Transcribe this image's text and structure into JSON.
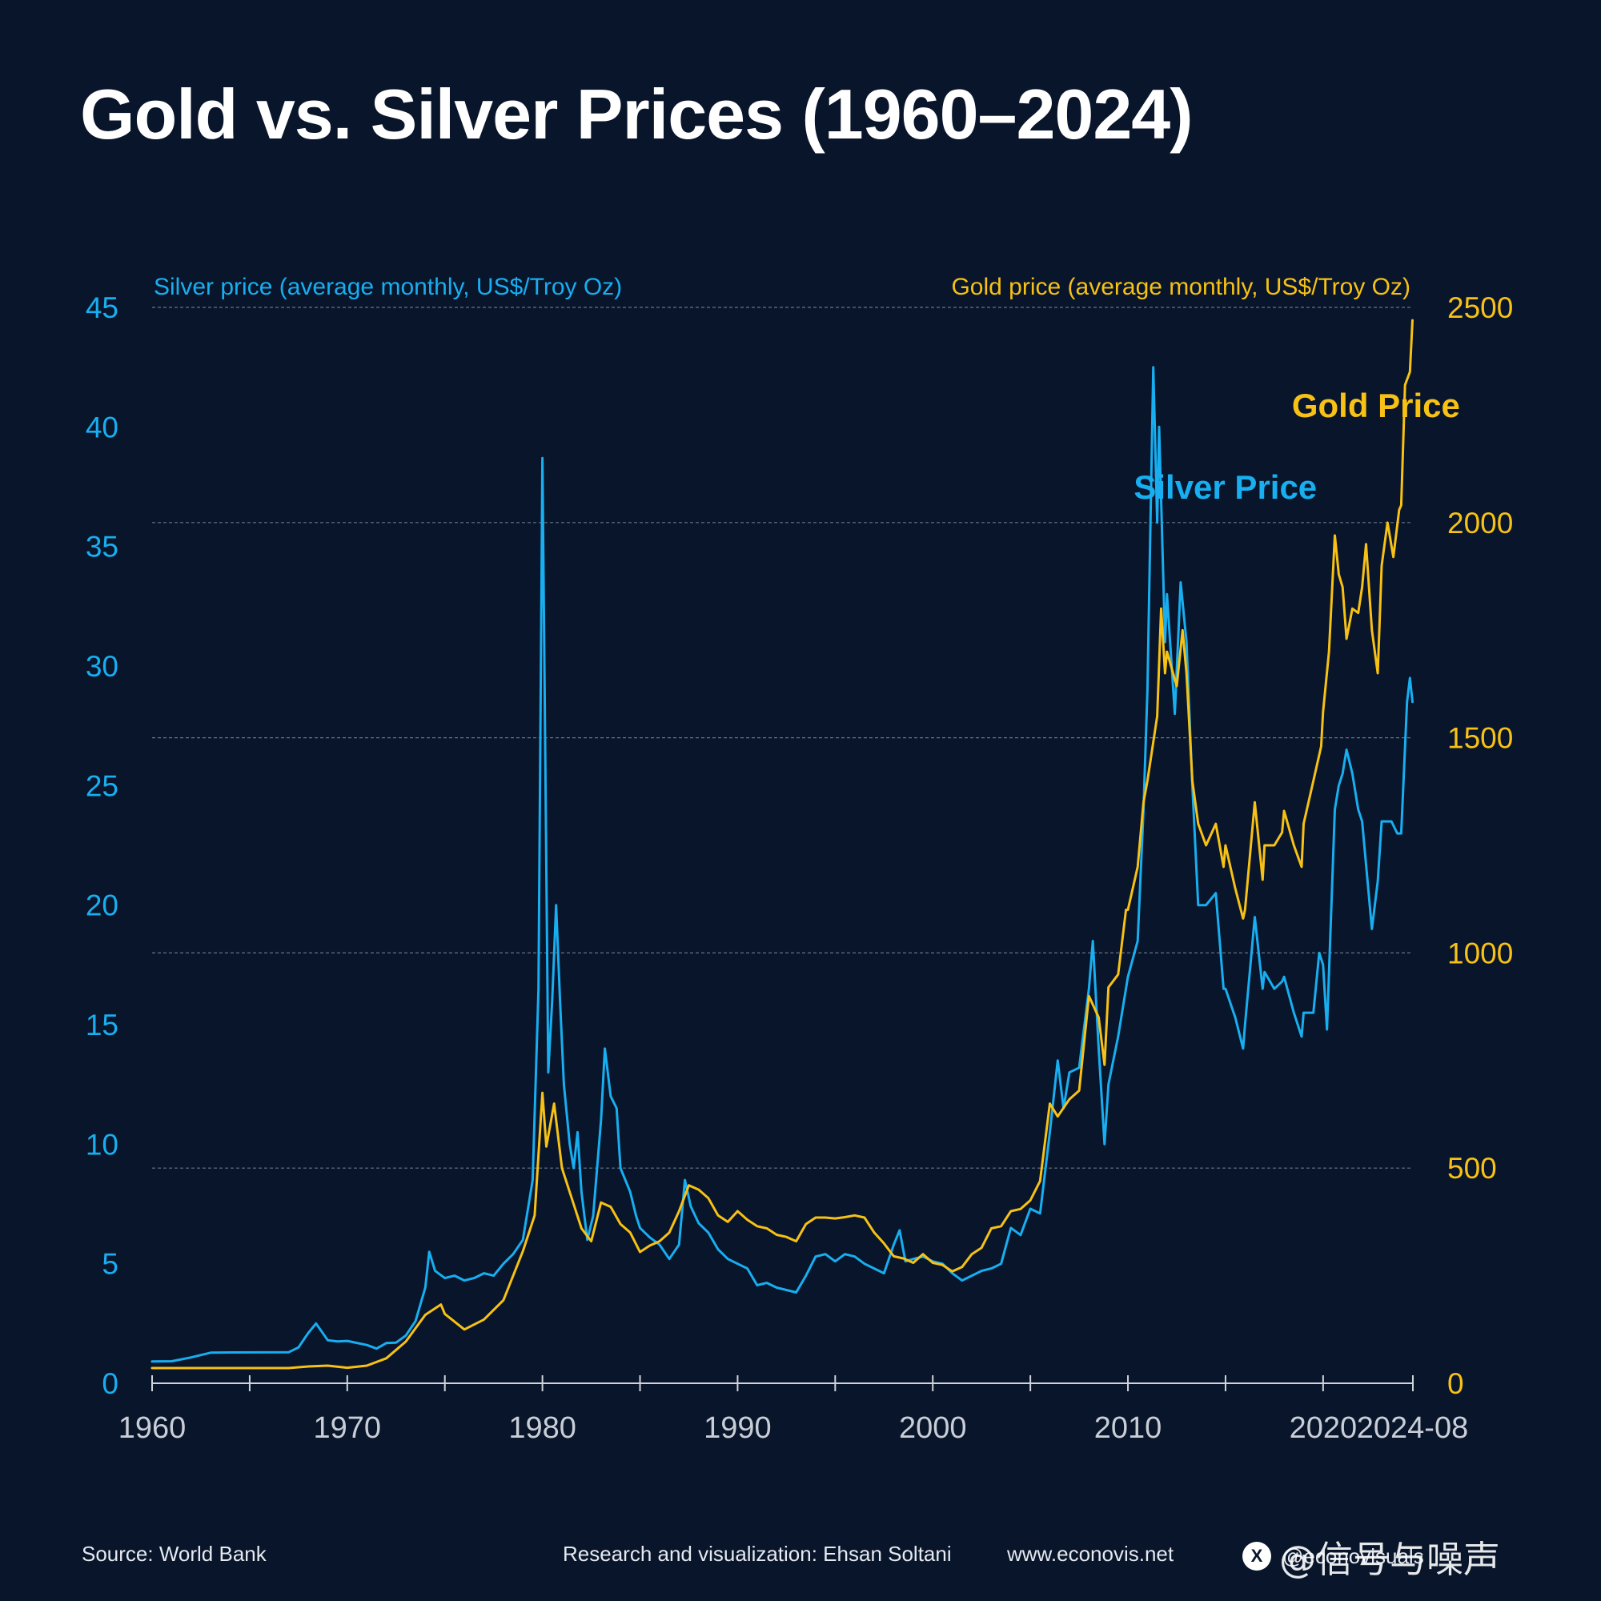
{
  "title": "Gold vs. Silver Prices (1960–2024)",
  "footer": {
    "source": "Source: World Bank",
    "credit": "Research and visualization: Ehsan Soltani",
    "website": "www.econovis.net",
    "social_handle": "@econovisuals",
    "x_icon": "X",
    "watermark": "@信号与噪声"
  },
  "colors": {
    "background": "#08152b",
    "silver": "#18aef0",
    "gold": "#f7c115",
    "grid": "#8a93a3",
    "axis": "#d0d4db"
  },
  "chart_data": {
    "type": "line",
    "x_ticks": [
      "1960",
      "1970",
      "1980",
      "1990",
      "2000",
      "2010",
      "2020",
      "2024-08"
    ],
    "x_tick_values": [
      1960,
      1970,
      1980,
      1990,
      2000,
      2010,
      2020,
      2024.58
    ],
    "xlim": [
      1960,
      2024.6
    ],
    "left_axis": {
      "label": "Silver price (average monthly, US$/Troy Oz)",
      "ylim": [
        0,
        45
      ],
      "ticks": [
        "0",
        "5",
        "10",
        "15",
        "20",
        "25",
        "30",
        "35",
        "40",
        "45"
      ]
    },
    "right_axis": {
      "label": "Gold price (average monthly, US$/Troy Oz)",
      "ylim": [
        0,
        2500
      ],
      "ticks": [
        "0",
        "500",
        "1000",
        "1500",
        "2000",
        "2500"
      ]
    },
    "series": [
      {
        "name": "Silver Price",
        "axis": "left",
        "points": [
          [
            1960,
            0.91
          ],
          [
            1961,
            0.92
          ],
          [
            1962,
            1.08
          ],
          [
            1963,
            1.28
          ],
          [
            1964,
            1.29
          ],
          [
            1967,
            1.3
          ],
          [
            1967.5,
            1.5
          ],
          [
            1968,
            2.1
          ],
          [
            1968.4,
            2.5
          ],
          [
            1969,
            1.8
          ],
          [
            1969.5,
            1.75
          ],
          [
            1970,
            1.77
          ],
          [
            1971,
            1.6
          ],
          [
            1971.5,
            1.45
          ],
          [
            1972,
            1.68
          ],
          [
            1972.5,
            1.7
          ],
          [
            1973,
            2.0
          ],
          [
            1973.5,
            2.6
          ],
          [
            1974,
            4.0
          ],
          [
            1974.2,
            5.5
          ],
          [
            1974.5,
            4.7
          ],
          [
            1975,
            4.4
          ],
          [
            1975.5,
            4.5
          ],
          [
            1976,
            4.3
          ],
          [
            1976.5,
            4.4
          ],
          [
            1977,
            4.6
          ],
          [
            1977.5,
            4.5
          ],
          [
            1978,
            5.0
          ],
          [
            1978.5,
            5.4
          ],
          [
            1979,
            6.0
          ],
          [
            1979.5,
            8.5
          ],
          [
            1979.8,
            16.5
          ],
          [
            1980.0,
            38.7
          ],
          [
            1980.1,
            30
          ],
          [
            1980.3,
            13.0
          ],
          [
            1980.5,
            16.0
          ],
          [
            1980.7,
            20.0
          ],
          [
            1980.9,
            16.0
          ],
          [
            1981.1,
            12.5
          ],
          [
            1981.4,
            10.0
          ],
          [
            1981.6,
            9.0
          ],
          [
            1981.8,
            10.5
          ],
          [
            1982,
            8.0
          ],
          [
            1982.3,
            6.0
          ],
          [
            1982.6,
            7.0
          ],
          [
            1982.8,
            9.0
          ],
          [
            1983,
            11.0
          ],
          [
            1983.2,
            14.0
          ],
          [
            1983.5,
            12.0
          ],
          [
            1983.8,
            11.5
          ],
          [
            1984,
            9.0
          ],
          [
            1984.5,
            8.0
          ],
          [
            1984.8,
            7.0
          ],
          [
            1985,
            6.5
          ],
          [
            1985.5,
            6.1
          ],
          [
            1986,
            5.8
          ],
          [
            1986.5,
            5.2
          ],
          [
            1987,
            5.8
          ],
          [
            1987.3,
            8.5
          ],
          [
            1987.6,
            7.4
          ],
          [
            1988,
            6.7
          ],
          [
            1988.5,
            6.3
          ],
          [
            1989,
            5.6
          ],
          [
            1989.5,
            5.2
          ],
          [
            1990,
            5.0
          ],
          [
            1990.5,
            4.8
          ],
          [
            1991,
            4.1
          ],
          [
            1991.5,
            4.2
          ],
          [
            1992,
            4.0
          ],
          [
            1992.5,
            3.9
          ],
          [
            1993,
            3.8
          ],
          [
            1993.5,
            4.5
          ],
          [
            1994,
            5.3
          ],
          [
            1994.5,
            5.4
          ],
          [
            1995,
            5.1
          ],
          [
            1995.5,
            5.4
          ],
          [
            1996,
            5.3
          ],
          [
            1996.5,
            5.0
          ],
          [
            1997,
            4.8
          ],
          [
            1997.5,
            4.6
          ],
          [
            1998,
            5.8
          ],
          [
            1998.3,
            6.4
          ],
          [
            1998.6,
            5.1
          ],
          [
            1999,
            5.2
          ],
          [
            1999.5,
            5.3
          ],
          [
            2000,
            5.1
          ],
          [
            2000.5,
            5.0
          ],
          [
            2001,
            4.6
          ],
          [
            2001.5,
            4.3
          ],
          [
            2002,
            4.5
          ],
          [
            2002.5,
            4.7
          ],
          [
            2003,
            4.8
          ],
          [
            2003.5,
            5.0
          ],
          [
            2004,
            6.5
          ],
          [
            2004.5,
            6.2
          ],
          [
            2005,
            7.3
          ],
          [
            2005.5,
            7.1
          ],
          [
            2006,
            10.5
          ],
          [
            2006.4,
            13.5
          ],
          [
            2006.7,
            11.5
          ],
          [
            2007,
            13.0
          ],
          [
            2007.5,
            13.2
          ],
          [
            2008,
            16.5
          ],
          [
            2008.2,
            18.5
          ],
          [
            2008.5,
            14.0
          ],
          [
            2008.8,
            10.0
          ],
          [
            2009,
            12.5
          ],
          [
            2009.5,
            14.5
          ],
          [
            2010,
            17.0
          ],
          [
            2010.5,
            18.5
          ],
          [
            2010.8,
            24.0
          ],
          [
            2011,
            29.0
          ],
          [
            2011.3,
            42.5
          ],
          [
            2011.5,
            36.0
          ],
          [
            2011.6,
            40.0
          ],
          [
            2011.9,
            31.0
          ],
          [
            2012,
            33.0
          ],
          [
            2012.4,
            28.0
          ],
          [
            2012.7,
            33.5
          ],
          [
            2013,
            31.0
          ],
          [
            2013.3,
            25.0
          ],
          [
            2013.6,
            20.0
          ],
          [
            2014,
            20.0
          ],
          [
            2014.5,
            20.5
          ],
          [
            2014.9,
            16.5
          ],
          [
            2015,
            16.5
          ],
          [
            2015.5,
            15.3
          ],
          [
            2015.9,
            14.0
          ],
          [
            2016,
            15.0
          ],
          [
            2016.5,
            19.5
          ],
          [
            2016.9,
            16.5
          ],
          [
            2017,
            17.2
          ],
          [
            2017.5,
            16.5
          ],
          [
            2017.9,
            16.8
          ],
          [
            2018,
            17.0
          ],
          [
            2018.5,
            15.5
          ],
          [
            2018.9,
            14.5
          ],
          [
            2019,
            15.5
          ],
          [
            2019.5,
            15.5
          ],
          [
            2019.8,
            18.0
          ],
          [
            2020,
            17.5
          ],
          [
            2020.2,
            14.8
          ],
          [
            2020.6,
            24.0
          ],
          [
            2020.8,
            25.0
          ],
          [
            2021,
            25.5
          ],
          [
            2021.2,
            26.5
          ],
          [
            2021.5,
            25.5
          ],
          [
            2021.8,
            24.0
          ],
          [
            2022,
            23.5
          ],
          [
            2022.5,
            19.0
          ],
          [
            2022.8,
            21.0
          ],
          [
            2023,
            23.5
          ],
          [
            2023.5,
            23.5
          ],
          [
            2023.8,
            23.0
          ],
          [
            2024,
            23.0
          ],
          [
            2024.3,
            28.5
          ],
          [
            2024.45,
            29.5
          ],
          [
            2024.58,
            28.5
          ]
        ]
      },
      {
        "name": "Gold Price",
        "axis": "right",
        "points": [
          [
            1960,
            35.3
          ],
          [
            1967,
            35.3
          ],
          [
            1968,
            39
          ],
          [
            1969,
            41
          ],
          [
            1970,
            36
          ],
          [
            1971,
            41
          ],
          [
            1972,
            58
          ],
          [
            1973,
            97
          ],
          [
            1974,
            159
          ],
          [
            1974.8,
            183
          ],
          [
            1975,
            161
          ],
          [
            1976,
            125
          ],
          [
            1977,
            148
          ],
          [
            1978,
            193
          ],
          [
            1979,
            307
          ],
          [
            1979.6,
            390
          ],
          [
            1980.0,
            675
          ],
          [
            1980.2,
            550
          ],
          [
            1980.6,
            650
          ],
          [
            1981,
            500
          ],
          [
            1981.5,
            430
          ],
          [
            1982,
            360
          ],
          [
            1982.5,
            330
          ],
          [
            1983,
            420
          ],
          [
            1983.5,
            410
          ],
          [
            1984,
            370
          ],
          [
            1984.5,
            350
          ],
          [
            1985,
            305
          ],
          [
            1985.5,
            320
          ],
          [
            1986,
            330
          ],
          [
            1986.5,
            350
          ],
          [
            1987,
            400
          ],
          [
            1987.5,
            460
          ],
          [
            1988,
            450
          ],
          [
            1988.5,
            430
          ],
          [
            1989,
            390
          ],
          [
            1989.5,
            375
          ],
          [
            1990,
            400
          ],
          [
            1990.5,
            380
          ],
          [
            1991,
            365
          ],
          [
            1991.5,
            360
          ],
          [
            1992,
            345
          ],
          [
            1992.5,
            340
          ],
          [
            1993,
            330
          ],
          [
            1993.5,
            370
          ],
          [
            1994,
            385
          ],
          [
            1994.5,
            385
          ],
          [
            1995,
            383
          ],
          [
            1995.5,
            386
          ],
          [
            1996,
            390
          ],
          [
            1996.5,
            385
          ],
          [
            1997,
            350
          ],
          [
            1997.5,
            325
          ],
          [
            1998,
            295
          ],
          [
            1998.5,
            290
          ],
          [
            1999,
            280
          ],
          [
            1999.5,
            300
          ],
          [
            2000,
            280
          ],
          [
            2000.5,
            275
          ],
          [
            2001,
            260
          ],
          [
            2001.5,
            270
          ],
          [
            2002,
            300
          ],
          [
            2002.5,
            315
          ],
          [
            2003,
            360
          ],
          [
            2003.5,
            365
          ],
          [
            2004,
            400
          ],
          [
            2004.5,
            405
          ],
          [
            2005,
            425
          ],
          [
            2005.5,
            470
          ],
          [
            2006,
            650
          ],
          [
            2006.4,
            620
          ],
          [
            2007,
            660
          ],
          [
            2007.5,
            680
          ],
          [
            2008,
            900
          ],
          [
            2008.5,
            850
          ],
          [
            2008.8,
            740
          ],
          [
            2009,
            920
          ],
          [
            2009.5,
            950
          ],
          [
            2009.9,
            1100
          ],
          [
            2010,
            1100
          ],
          [
            2010.5,
            1200
          ],
          [
            2010.8,
            1350
          ],
          [
            2011,
            1400
          ],
          [
            2011.5,
            1550
          ],
          [
            2011.7,
            1800
          ],
          [
            2011.9,
            1650
          ],
          [
            2012,
            1700
          ],
          [
            2012.5,
            1620
          ],
          [
            2012.8,
            1750
          ],
          [
            2013,
            1650
          ],
          [
            2013.3,
            1400
          ],
          [
            2013.6,
            1300
          ],
          [
            2014,
            1250
          ],
          [
            2014.5,
            1300
          ],
          [
            2014.9,
            1200
          ],
          [
            2015,
            1250
          ],
          [
            2015.5,
            1150
          ],
          [
            2015.9,
            1080
          ],
          [
            2016,
            1100
          ],
          [
            2016.5,
            1350
          ],
          [
            2016.9,
            1170
          ],
          [
            2017,
            1250
          ],
          [
            2017.5,
            1250
          ],
          [
            2017.9,
            1280
          ],
          [
            2018,
            1330
          ],
          [
            2018.5,
            1250
          ],
          [
            2018.9,
            1200
          ],
          [
            2019,
            1300
          ],
          [
            2019.5,
            1400
          ],
          [
            2019.9,
            1480
          ],
          [
            2020,
            1560
          ],
          [
            2020.3,
            1700
          ],
          [
            2020.6,
            1970
          ],
          [
            2020.8,
            1880
          ],
          [
            2021,
            1850
          ],
          [
            2021.2,
            1730
          ],
          [
            2021.5,
            1800
          ],
          [
            2021.8,
            1790
          ],
          [
            2022,
            1850
          ],
          [
            2022.2,
            1950
          ],
          [
            2022.5,
            1750
          ],
          [
            2022.8,
            1650
          ],
          [
            2023,
            1900
          ],
          [
            2023.3,
            2000
          ],
          [
            2023.6,
            1920
          ],
          [
            2023.9,
            2030
          ],
          [
            2024,
            2040
          ],
          [
            2024.2,
            2320
          ],
          [
            2024.45,
            2350
          ],
          [
            2024.58,
            2470
          ]
        ]
      }
    ],
    "annotations": [
      {
        "text": "Silver Price",
        "x": 2010.3,
        "y_left": 37,
        "color_key": "silver"
      },
      {
        "text": "Gold Price",
        "x": 2018.4,
        "y_right": 2245,
        "color_key": "gold"
      }
    ],
    "grid": "horizontal dashed"
  }
}
